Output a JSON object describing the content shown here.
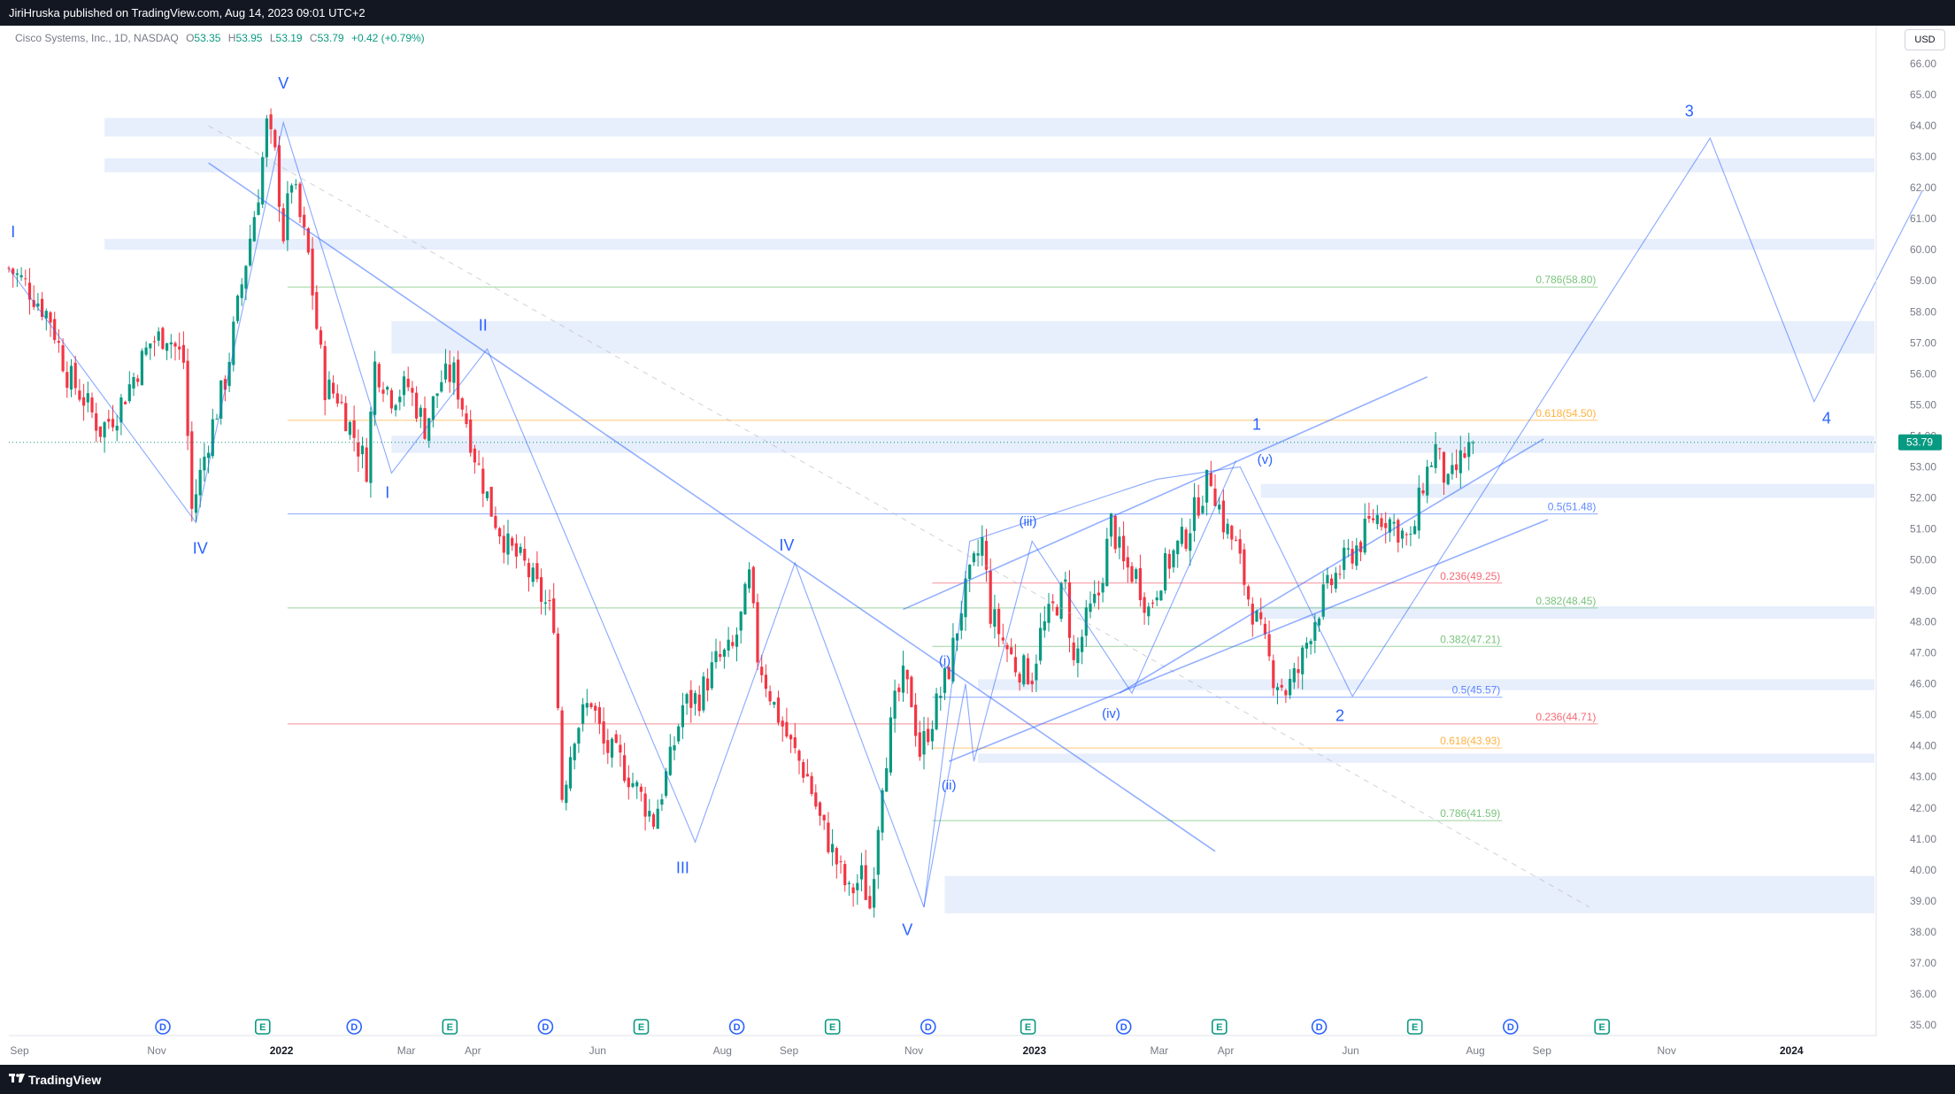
{
  "header": {
    "published_text": "JiriHruska published on TradingView.com, Aug 14, 2023 09:01 UTC+2"
  },
  "legend": {
    "symbol": "Cisco Systems, Inc., 1D, NASDAQ",
    "open_label": "O",
    "open": "53.35",
    "high_label": "H",
    "high": "53.95",
    "low_label": "L",
    "low": "53.19",
    "close_label": "C",
    "close": "53.79",
    "change": "+0.42 (+0.79%)"
  },
  "currency_button": "USD",
  "footer": {
    "brand": "TradingView"
  },
  "colors": {
    "background": "#ffffff",
    "bar_bg": "#131722",
    "up": "#089981",
    "down": "#f23645",
    "drawing_blue": "#2962ff",
    "zone_fill": "#e3ebfb",
    "axis_text": "#787b86"
  },
  "chart_data": {
    "type": "candlestick",
    "title": "Cisco Systems, Inc., 1D, NASDAQ",
    "currency": "USD",
    "ylim": [
      34.7,
      66.7
    ],
    "y_ticks": [
      "35.00",
      "36.00",
      "37.00",
      "38.00",
      "39.00",
      "40.00",
      "41.00",
      "42.00",
      "43.00",
      "44.00",
      "45.00",
      "46.00",
      "47.00",
      "48.00",
      "49.00",
      "50.00",
      "51.00",
      "52.00",
      "53.00",
      "54.00",
      "55.00",
      "56.00",
      "57.00",
      "58.00",
      "59.00",
      "60.00",
      "61.00",
      "62.00",
      "63.00",
      "64.00",
      "65.00",
      "66.00"
    ],
    "x_ticks": [
      {
        "label": "Sep",
        "i": 0,
        "bold": false
      },
      {
        "label": "Nov",
        "i": 33,
        "bold": false
      },
      {
        "label": "2022",
        "i": 63,
        "bold": true
      },
      {
        "label": "Mar",
        "i": 93,
        "bold": false
      },
      {
        "label": "Apr",
        "i": 109,
        "bold": false
      },
      {
        "label": "Jun",
        "i": 139,
        "bold": false
      },
      {
        "label": "Aug",
        "i": 169,
        "bold": false
      },
      {
        "label": "Sep",
        "i": 185,
        "bold": false
      },
      {
        "label": "Nov",
        "i": 215,
        "bold": false
      },
      {
        "label": "2023",
        "i": 244,
        "bold": true
      },
      {
        "label": "Mar",
        "i": 274,
        "bold": false
      },
      {
        "label": "Apr",
        "i": 290,
        "bold": false
      },
      {
        "label": "Jun",
        "i": 320,
        "bold": false
      },
      {
        "label": "Aug",
        "i": 350,
        "bold": false
      },
      {
        "label": "Sep",
        "i": 366,
        "bold": false
      },
      {
        "label": "Nov",
        "i": 396,
        "bold": false
      },
      {
        "label": "2024",
        "i": 426,
        "bold": true
      }
    ],
    "bar_count_visible": 445,
    "last_price": {
      "value": 53.79,
      "label": "53.79"
    },
    "price_path": [
      [
        0,
        59.4
      ],
      [
        4,
        58.9
      ],
      [
        10,
        57.8
      ],
      [
        14,
        56.0
      ],
      [
        18,
        55.2
      ],
      [
        22,
        54.2
      ],
      [
        26,
        54.8
      ],
      [
        30,
        55.9
      ],
      [
        34,
        57.0
      ],
      [
        38,
        57.3
      ],
      [
        42,
        56.4
      ],
      [
        44,
        51.6
      ],
      [
        48,
        53.9
      ],
      [
        52,
        55.8
      ],
      [
        56,
        58.9
      ],
      [
        60,
        61.9
      ],
      [
        62,
        64.0
      ],
      [
        64,
        63.0
      ],
      [
        66,
        60.5
      ],
      [
        68,
        62.3
      ],
      [
        70,
        61.0
      ],
      [
        72,
        59.8
      ],
      [
        74,
        57.5
      ],
      [
        76,
        55.6
      ],
      [
        79,
        55.3
      ],
      [
        83,
        54.0
      ],
      [
        86,
        53.0
      ],
      [
        88,
        56.3
      ],
      [
        92,
        55.3
      ],
      [
        96,
        55.6
      ],
      [
        100,
        54.3
      ],
      [
        104,
        55.8
      ],
      [
        107,
        56.0
      ],
      [
        110,
        54.5
      ],
      [
        112,
        53.4
      ],
      [
        116,
        51.6
      ],
      [
        120,
        50.4
      ],
      [
        124,
        49.8
      ],
      [
        128,
        48.8
      ],
      [
        131,
        48.1
      ],
      [
        133,
        42.4
      ],
      [
        136,
        44.5
      ],
      [
        140,
        45.5
      ],
      [
        143,
        44.0
      ],
      [
        147,
        43.5
      ],
      [
        151,
        42.6
      ],
      [
        155,
        41.6
      ],
      [
        159,
        43.5
      ],
      [
        162,
        45.3
      ],
      [
        166,
        45.6
      ],
      [
        170,
        46.7
      ],
      [
        174,
        47.1
      ],
      [
        176,
        48.1
      ],
      [
        178,
        49.4
      ],
      [
        180,
        46.9
      ],
      [
        184,
        45.3
      ],
      [
        188,
        44.0
      ],
      [
        192,
        43.0
      ],
      [
        195,
        41.6
      ],
      [
        198,
        40.6
      ],
      [
        202,
        39.2
      ],
      [
        205,
        39.8
      ],
      [
        207,
        38.8
      ],
      [
        210,
        43.0
      ],
      [
        213,
        45.3
      ],
      [
        215,
        46.1
      ],
      [
        217,
        45.5
      ],
      [
        219,
        43.8
      ],
      [
        222,
        44.9
      ],
      [
        226,
        46.5
      ],
      [
        229,
        48.5
      ],
      [
        232,
        49.8
      ],
      [
        234,
        50.6
      ],
      [
        236,
        48.3
      ],
      [
        239,
        47.4
      ],
      [
        242,
        46.6
      ],
      [
        246,
        46.3
      ],
      [
        248,
        47.6
      ],
      [
        251,
        48.4
      ],
      [
        254,
        49.1
      ],
      [
        256,
        46.6
      ],
      [
        259,
        48.0
      ],
      [
        262,
        48.9
      ],
      [
        265,
        51.2
      ],
      [
        268,
        49.8
      ],
      [
        271,
        49.5
      ],
      [
        274,
        48.4
      ],
      [
        277,
        49.5
      ],
      [
        280,
        50.2
      ],
      [
        283,
        50.8
      ],
      [
        286,
        51.9
      ],
      [
        289,
        52.7
      ],
      [
        292,
        51.2
      ],
      [
        295,
        50.4
      ],
      [
        298,
        48.8
      ],
      [
        301,
        47.6
      ],
      [
        304,
        46.3
      ],
      [
        307,
        45.8
      ],
      [
        310,
        46.4
      ],
      [
        313,
        47.8
      ],
      [
        316,
        48.8
      ],
      [
        319,
        49.5
      ],
      [
        322,
        50.1
      ],
      [
        325,
        50.6
      ],
      [
        328,
        51.4
      ],
      [
        331,
        51.4
      ],
      [
        334,
        51.0
      ],
      [
        337,
        50.5
      ],
      [
        340,
        52.5
      ],
      [
        343,
        53.6
      ],
      [
        346,
        52.3
      ],
      [
        349,
        53.2
      ],
      [
        352,
        53.8
      ]
    ],
    "horizontal_zones": [
      {
        "lo": 63.65,
        "hi": 64.25,
        "from": 23
      },
      {
        "lo": 62.5,
        "hi": 62.95,
        "from": 23
      },
      {
        "lo": 60.0,
        "hi": 60.35,
        "from": 23
      },
      {
        "lo": 56.65,
        "hi": 57.7,
        "from": 92
      },
      {
        "lo": 53.45,
        "hi": 54.0,
        "from": 92
      },
      {
        "lo": 52.0,
        "hi": 52.45,
        "from": 301
      },
      {
        "lo": 48.1,
        "hi": 48.5,
        "from": 301
      },
      {
        "lo": 45.8,
        "hi": 46.15,
        "from": 233
      },
      {
        "lo": 43.45,
        "hi": 43.75,
        "from": 233
      },
      {
        "lo": 38.6,
        "hi": 39.8,
        "from": 225
      }
    ],
    "fib_levels": [
      {
        "label": "0.786(58.80)",
        "price": 58.8,
        "from": 67,
        "to": 382,
        "color": "#4caf50"
      },
      {
        "label": "0.618(54.50)",
        "price": 54.5,
        "from": 67,
        "to": 382,
        "color": "#ff9800"
      },
      {
        "label": "0.5(51.48)",
        "price": 51.48,
        "from": 67,
        "to": 382,
        "color": "#2962ff"
      },
      {
        "label": "0.382(48.45)",
        "price": 48.45,
        "from": 67,
        "to": 382,
        "color": "#4caf50"
      },
      {
        "label": "0.236(44.71)",
        "price": 44.71,
        "from": 67,
        "to": 382,
        "color": "#f23645"
      },
      {
        "label": "0.236(49.25)",
        "price": 49.25,
        "from": 222,
        "to": 359,
        "color": "#f23645"
      },
      {
        "label": "0.382(47.21)",
        "price": 47.21,
        "from": 222,
        "to": 359,
        "color": "#4caf50"
      },
      {
        "label": "0.5(45.57)",
        "price": 45.57,
        "from": 222,
        "to": 359,
        "color": "#2962ff"
      },
      {
        "label": "0.618(43.93)",
        "price": 43.93,
        "from": 222,
        "to": 359,
        "color": "#ff9800"
      },
      {
        "label": "0.786(41.59)",
        "price": 41.59,
        "from": 222,
        "to": 359,
        "color": "#4caf50"
      }
    ],
    "wave_polylines": [
      [
        [
          0,
          59.4
        ],
        [
          45,
          51.2
        ],
        [
          66,
          64.1
        ],
        [
          92,
          52.8
        ],
        [
          115,
          56.8
        ],
        [
          165,
          40.9
        ],
        [
          189,
          49.9
        ],
        [
          220,
          38.8
        ],
        [
          231,
          50.6
        ],
        [
          276,
          52.6
        ],
        [
          296,
          53.0
        ],
        [
          323,
          45.6
        ],
        [
          409,
          63.6
        ],
        [
          434,
          55.1
        ],
        [
          460,
          61.9
        ]
      ],
      [
        [
          220,
          38.8
        ],
        [
          230,
          46.0
        ],
        [
          232,
          43.5
        ],
        [
          246,
          50.6
        ],
        [
          270,
          45.7
        ],
        [
          295,
          53.2
        ]
      ],
      [
        [
          130,
          51.0
        ],
        [
          380,
          53.0
        ]
      ]
    ],
    "trend_lines": [
      [
        [
          48,
          62.8
        ],
        [
          290,
          40.6
        ]
      ],
      [
        [
          215,
          48.4
        ],
        [
          341,
          55.9
        ]
      ],
      [
        [
          226,
          43.5
        ],
        [
          370,
          51.3
        ]
      ],
      [
        [
          267,
          45.7
        ],
        [
          369,
          53.9
        ]
      ]
    ],
    "wave_labels": [
      {
        "text": "I",
        "i": 1,
        "price": 60.4,
        "size": 18
      },
      {
        "text": "IV",
        "i": 46,
        "price": 50.2,
        "size": 18
      },
      {
        "text": "V",
        "i": 66,
        "price": 65.2,
        "size": 18
      },
      {
        "text": "II",
        "i": 114,
        "price": 57.4,
        "size": 18
      },
      {
        "text": "I",
        "i": 91,
        "price": 52.0,
        "size": 18
      },
      {
        "text": "III",
        "i": 162,
        "price": 39.9,
        "size": 18
      },
      {
        "text": "IV",
        "i": 187,
        "price": 50.3,
        "size": 18
      },
      {
        "text": "V",
        "i": 216,
        "price": 37.9,
        "size": 18
      },
      {
        "text": "(i)",
        "i": 225,
        "price": 46.6,
        "size": 15
      },
      {
        "text": "(ii)",
        "i": 226,
        "price": 42.6,
        "size": 15
      },
      {
        "text": "(iii)",
        "i": 245,
        "price": 51.1,
        "size": 15
      },
      {
        "text": "(iv)",
        "i": 265,
        "price": 44.9,
        "size": 15
      },
      {
        "text": "(v)",
        "i": 302,
        "price": 53.1,
        "size": 15
      },
      {
        "text": "1",
        "i": 300,
        "price": 54.2,
        "size": 18
      },
      {
        "text": "2",
        "i": 320,
        "price": 44.8,
        "size": 18
      },
      {
        "text": "3",
        "i": 404,
        "price": 64.3,
        "size": 18
      },
      {
        "text": "4",
        "i": 437,
        "price": 54.4,
        "size": 18
      }
    ],
    "event_markers": [
      {
        "type": "D",
        "i": 20
      },
      {
        "type": "E",
        "i": 44
      },
      {
        "type": "D",
        "i": 66
      },
      {
        "type": "E",
        "i": 89
      },
      {
        "type": "D",
        "i": 112
      },
      {
        "type": "E",
        "i": 135
      },
      {
        "type": "D",
        "i": 158
      },
      {
        "type": "E",
        "i": 181
      },
      {
        "type": "D",
        "i": 204
      },
      {
        "type": "E",
        "i": 228
      },
      {
        "type": "D",
        "i": 251
      },
      {
        "type": "E",
        "i": 274
      },
      {
        "type": "D",
        "i": 298
      },
      {
        "type": "E",
        "i": 321
      },
      {
        "type": "D",
        "i": 344
      },
      {
        "type": "E",
        "i": 366
      }
    ]
  }
}
